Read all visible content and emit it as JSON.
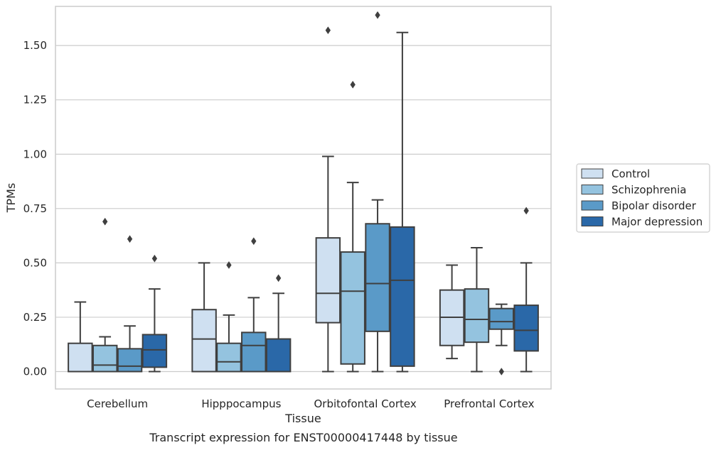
{
  "chart_data": {
    "type": "box",
    "title": "",
    "caption": "Transcript expression for ENST00000417448 by tissue",
    "xlabel": "Tissue",
    "ylabel": "TPMs",
    "ylim": [
      -0.08,
      1.68
    ],
    "yticks": [
      0.0,
      0.25,
      0.5,
      0.75,
      1.0,
      1.25,
      1.5
    ],
    "ytick_labels": [
      "0.00",
      "0.25",
      "0.50",
      "0.75",
      "1.00",
      "1.25",
      "1.50"
    ],
    "grid": true,
    "legend_position": "right",
    "categories": [
      "Cerebellum",
      "Hipppocampus",
      "Orbitofontal Cortex",
      "Prefrontal Cortex"
    ],
    "series": [
      {
        "name": "Control",
        "color": "#cfe0f1",
        "boxes": [
          {
            "min": 0.0,
            "q1": 0.0,
            "median": 0.0,
            "q3": 0.13,
            "max": 0.32,
            "outliers": []
          },
          {
            "min": 0.0,
            "q1": 0.0,
            "median": 0.15,
            "q3": 0.285,
            "max": 0.5,
            "outliers": []
          },
          {
            "min": 0.0,
            "q1": 0.225,
            "median": 0.36,
            "q3": 0.615,
            "max": 0.99,
            "outliers": [
              1.57
            ]
          },
          {
            "min": 0.06,
            "q1": 0.12,
            "median": 0.25,
            "q3": 0.375,
            "max": 0.49,
            "outliers": []
          }
        ]
      },
      {
        "name": "Schizophrenia",
        "color": "#94c3df",
        "boxes": [
          {
            "min": 0.0,
            "q1": 0.0,
            "median": 0.03,
            "q3": 0.12,
            "max": 0.16,
            "outliers": [
              0.69
            ]
          },
          {
            "min": 0.0,
            "q1": 0.0,
            "median": 0.045,
            "q3": 0.13,
            "max": 0.26,
            "outliers": [
              0.49
            ]
          },
          {
            "min": 0.0,
            "q1": 0.035,
            "median": 0.37,
            "q3": 0.55,
            "max": 0.87,
            "outliers": [
              1.32
            ]
          },
          {
            "min": 0.0,
            "q1": 0.135,
            "median": 0.24,
            "q3": 0.38,
            "max": 0.57,
            "outliers": []
          }
        ]
      },
      {
        "name": "Bipolar disorder",
        "color": "#5a9ac8",
        "boxes": [
          {
            "min": 0.0,
            "q1": 0.0,
            "median": 0.025,
            "q3": 0.105,
            "max": 0.21,
            "outliers": [
              0.61
            ]
          },
          {
            "min": 0.0,
            "q1": 0.0,
            "median": 0.12,
            "q3": 0.18,
            "max": 0.34,
            "outliers": [
              0.6
            ]
          },
          {
            "min": 0.0,
            "q1": 0.185,
            "median": 0.405,
            "q3": 0.68,
            "max": 0.79,
            "outliers": [
              1.64
            ]
          },
          {
            "min": 0.12,
            "q1": 0.195,
            "median": 0.23,
            "q3": 0.29,
            "max": 0.31,
            "outliers": [
              0.0
            ]
          }
        ]
      },
      {
        "name": "Major depression",
        "color": "#2a68a8",
        "boxes": [
          {
            "min": 0.0,
            "q1": 0.02,
            "median": 0.1,
            "q3": 0.17,
            "max": 0.38,
            "outliers": [
              0.52
            ]
          },
          {
            "min": 0.0,
            "q1": 0.0,
            "median": 0.0,
            "q3": 0.15,
            "max": 0.36,
            "outliers": [
              0.43
            ]
          },
          {
            "min": 0.0,
            "q1": 0.025,
            "median": 0.42,
            "q3": 0.665,
            "max": 1.56,
            "outliers": []
          },
          {
            "min": 0.0,
            "q1": 0.095,
            "median": 0.19,
            "q3": 0.305,
            "max": 0.5,
            "outliers": [
              0.74
            ]
          }
        ]
      }
    ]
  },
  "colors": {
    "grid": "#cccccc",
    "frame": "#cccccc",
    "box_edge": "#3f3f3f",
    "text": "#262626"
  }
}
